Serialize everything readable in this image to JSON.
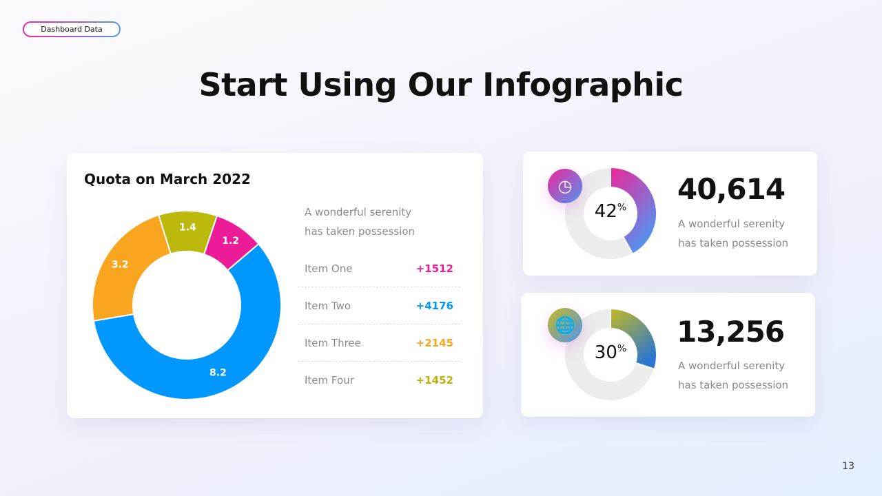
{
  "tag": "Dashboard Data",
  "title": "Start Using Our Infographic",
  "left_card": {
    "title": "Quota on March 2022",
    "desc1": "A wonderful serenity",
    "desc2": "has taken possession",
    "items": [
      {
        "label": "Item One",
        "value": "+1512",
        "color": "#ec1c99"
      },
      {
        "label": "Item Two",
        "value": "+4176",
        "color": "#0097ff"
      },
      {
        "label": "Item Three",
        "value": "+2145",
        "color": "#f9a51f"
      },
      {
        "label": "Item Four",
        "value": "+1452",
        "color": "#b5b50a"
      }
    ]
  },
  "stat_cards": [
    {
      "number": "40,614",
      "percent": "42",
      "unit": "%",
      "desc1": "A wonderful serenity",
      "desc2": "has taken possession",
      "icon": "clock-icon",
      "gradient": [
        "#f0259b",
        "#4f95f0"
      ]
    },
    {
      "number": "13,256",
      "percent": "30",
      "unit": "%",
      "desc1": "A wonderful serenity",
      "desc2": "has taken possession",
      "icon": "globe-icon",
      "gradient": [
        "#c5b820",
        "#2a76d2"
      ]
    }
  ],
  "page_number": "13",
  "chart_data": [
    {
      "type": "pie",
      "subtype": "donut",
      "title": "Quota on March 2022",
      "categories": [
        "Pink",
        "Blue",
        "Orange",
        "Olive"
      ],
      "values": [
        1.2,
        8.2,
        3.2,
        1.4
      ],
      "labels": [
        "1.2",
        "8.2",
        "3.2",
        "1.4"
      ],
      "colors": [
        "#ec1c99",
        "#0097ff",
        "#f9a51f",
        "#bcb90c"
      ]
    },
    {
      "type": "pie",
      "subtype": "donut",
      "values": [
        42,
        58
      ],
      "colors": [
        "gradient",
        "#ececec"
      ]
    },
    {
      "type": "pie",
      "subtype": "donut",
      "values": [
        30,
        70
      ],
      "colors": [
        "gradient",
        "#ececec"
      ]
    }
  ]
}
